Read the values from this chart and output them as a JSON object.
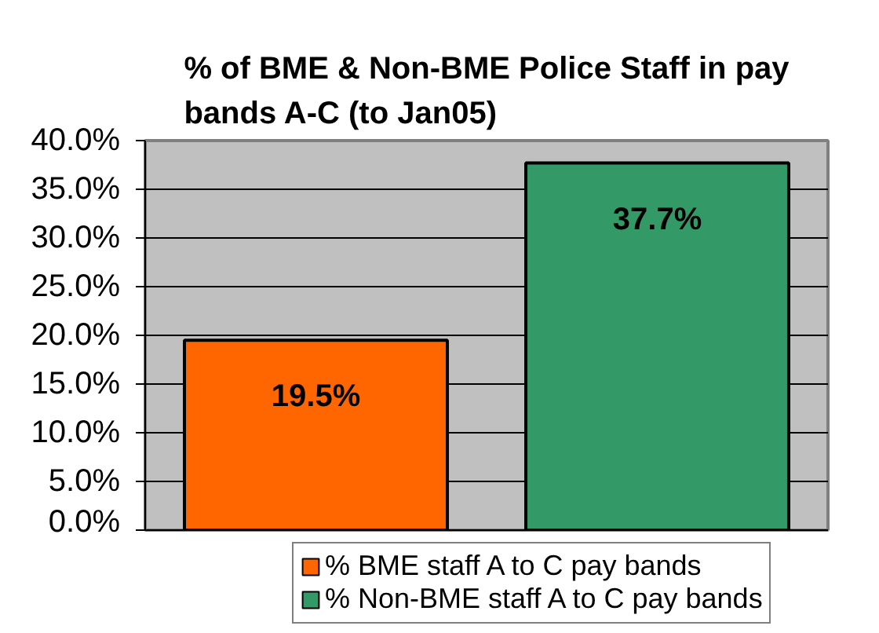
{
  "chart_data": {
    "type": "bar",
    "title": "% of BME & Non-BME Police Staff in pay\nbands A-C (to Jan05)",
    "categories": [
      null
    ],
    "series": [
      {
        "name": "% BME staff A to C pay bands",
        "color": "#ff6600",
        "values": [
          19.5
        ],
        "value_labels": [
          "19.5%"
        ]
      },
      {
        "name": "% Non-BME staff A to C pay bands",
        "color": "#339966",
        "values": [
          37.7
        ],
        "value_labels": [
          "37.7%"
        ]
      }
    ],
    "ylim": [
      0,
      40
    ],
    "yticks": [
      {
        "value": 0,
        "label": "0.0%"
      },
      {
        "value": 5,
        "label": "5.0%"
      },
      {
        "value": 10,
        "label": "10.0%"
      },
      {
        "value": 15,
        "label": "15.0%"
      },
      {
        "value": 20,
        "label": "20.0%"
      },
      {
        "value": 25,
        "label": "25.0%"
      },
      {
        "value": 30,
        "label": "30.0%"
      },
      {
        "value": 35,
        "label": "35.0%"
      },
      {
        "value": 40,
        "label": "40.0%"
      }
    ],
    "grid": "y",
    "legend": "bottom"
  }
}
